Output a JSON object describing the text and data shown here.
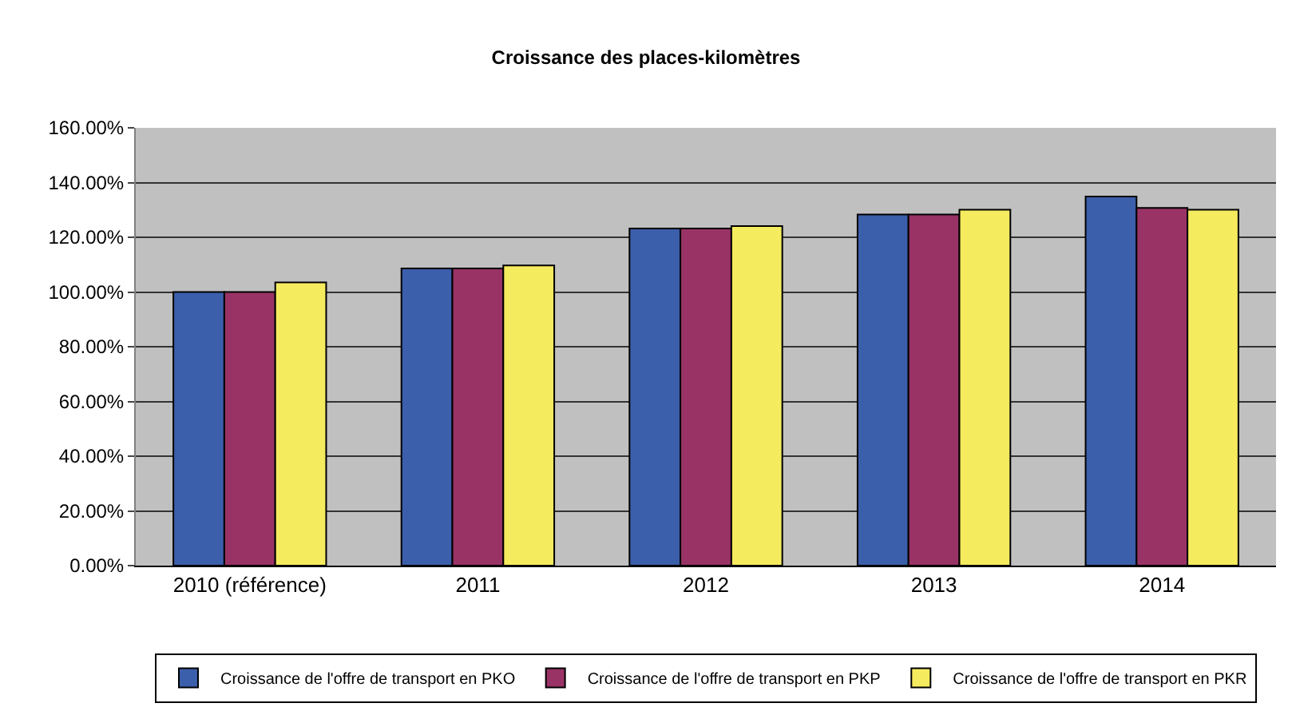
{
  "chart_data": {
    "type": "bar",
    "title": "Croissance des places-kilomètres",
    "categories": [
      "2010 (référence)",
      "2011",
      "2012",
      "2013",
      "2014"
    ],
    "series": [
      {
        "name": "Croissance de l'offre de transport en PKO",
        "color": "#3c5fab",
        "values": [
          100,
          108.6,
          123.2,
          128.3,
          134.9
        ]
      },
      {
        "name": "Croissance de l'offre de transport en PKP",
        "color": "#993366",
        "values": [
          100,
          108.6,
          123.2,
          128.3,
          130.7
        ]
      },
      {
        "name": "Croissance de l'offre de transport en PKR",
        "color": "#f5eb5f",
        "values": [
          103.5,
          109.7,
          124.1,
          130.1,
          130.1
        ]
      }
    ],
    "ylim": [
      0,
      160
    ],
    "yticks": [
      {
        "value": 0,
        "label": "0.00%"
      },
      {
        "value": 20,
        "label": "20.00%"
      },
      {
        "value": 40,
        "label": "40.00%"
      },
      {
        "value": 60,
        "label": "60.00%"
      },
      {
        "value": 80,
        "label": "80.00%"
      },
      {
        "value": 100,
        "label": "100.00%"
      },
      {
        "value": 120,
        "label": "120.00%"
      },
      {
        "value": 140,
        "label": "140.00%"
      },
      {
        "value": 160,
        "label": "160.00%"
      }
    ],
    "grid": "y",
    "legend": "bottom"
  }
}
